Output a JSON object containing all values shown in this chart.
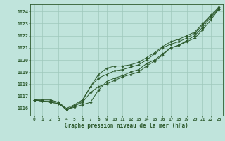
{
  "title": "Graphe pression niveau de la mer (hPa)",
  "bg_color": "#c0e4dc",
  "line_color": "#2d5a2d",
  "grid_color": "#9ec8bc",
  "ylim": [
    1015.4,
    1024.6
  ],
  "xlim": [
    -0.5,
    23.5
  ],
  "yticks": [
    1016,
    1017,
    1018,
    1019,
    1020,
    1021,
    1022,
    1023,
    1024
  ],
  "xticks": [
    0,
    1,
    2,
    3,
    4,
    5,
    6,
    7,
    8,
    9,
    10,
    11,
    12,
    13,
    14,
    15,
    16,
    17,
    18,
    19,
    20,
    21,
    22,
    23
  ],
  "series": [
    [
      1016.7,
      1016.7,
      1016.7,
      1016.5,
      1015.9,
      1016.1,
      1016.3,
      1016.5,
      1017.5,
      1018.2,
      1018.5,
      1018.7,
      1019.0,
      1019.2,
      1019.7,
      1020.0,
      1020.5,
      1021.0,
      1021.2,
      1021.6,
      1022.0,
      1022.7,
      1023.5,
      1024.2
    ],
    [
      1016.7,
      1016.6,
      1016.5,
      1016.4,
      1015.9,
      1016.2,
      1016.5,
      1017.3,
      1017.8,
      1018.0,
      1018.3,
      1018.6,
      1018.8,
      1019.0,
      1019.5,
      1019.9,
      1020.4,
      1021.0,
      1021.2,
      1021.5,
      1021.8,
      1022.5,
      1023.3,
      1024.2
    ],
    [
      1016.7,
      1016.6,
      1016.6,
      1016.5,
      1016.0,
      1016.3,
      1016.7,
      1017.8,
      1018.5,
      1018.8,
      1019.1,
      1019.2,
      1019.4,
      1019.6,
      1020.0,
      1020.5,
      1021.0,
      1021.3,
      1021.5,
      1021.8,
      1022.2,
      1022.9,
      1023.6,
      1024.3
    ],
    [
      1016.7,
      1016.6,
      1016.5,
      1016.4,
      1015.9,
      1016.2,
      1016.6,
      1017.8,
      1018.8,
      1019.3,
      1019.5,
      1019.5,
      1019.6,
      1019.8,
      1020.2,
      1020.6,
      1021.1,
      1021.5,
      1021.7,
      1022.0,
      1022.3,
      1023.0,
      1023.7,
      1024.35
    ]
  ]
}
